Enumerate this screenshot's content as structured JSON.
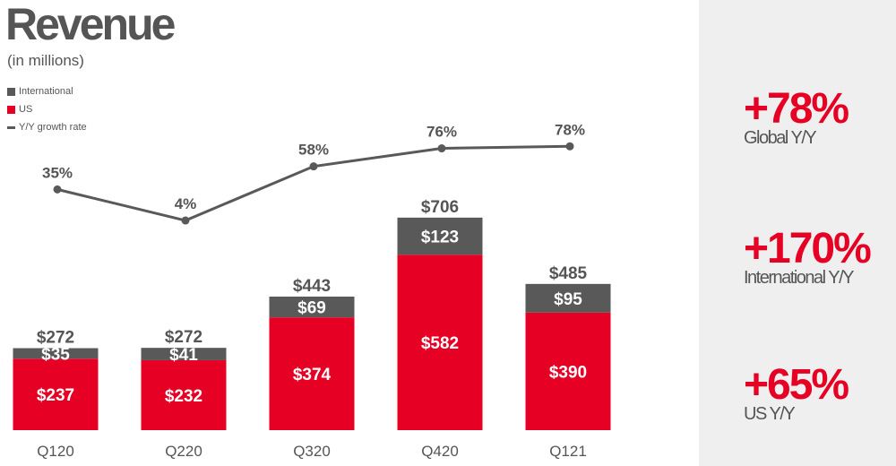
{
  "title": "Revenue",
  "subtitle": "(in millions)",
  "colors": {
    "international": "#595959",
    "us": "#e60023",
    "growth": "#595959",
    "text": "#555555"
  },
  "legend": [
    {
      "label": "International",
      "kind": "square",
      "color": "#595959"
    },
    {
      "label": "US",
      "kind": "square",
      "color": "#e60023"
    },
    {
      "label": "Y/Y growth rate",
      "kind": "dash",
      "color": "#595959"
    }
  ],
  "chart_data": {
    "type": "bar",
    "stacked": true,
    "categories": [
      "Q120",
      "Q220",
      "Q320",
      "Q420",
      "Q121"
    ],
    "series": [
      {
        "name": "US",
        "values": [
          237,
          232,
          374,
          582,
          390
        ],
        "labels": [
          "$237",
          "$232",
          "$374",
          "$582",
          "$390"
        ]
      },
      {
        "name": "International",
        "values": [
          35,
          41,
          69,
          123,
          95
        ],
        "labels": [
          "$35",
          "$41",
          "$69",
          "$123",
          "$95"
        ]
      }
    ],
    "totals": [
      272,
      272,
      443,
      706,
      485
    ],
    "total_labels": [
      "$272",
      "$272",
      "$443",
      "$706",
      "$485"
    ],
    "growth": {
      "name": "Y/Y growth rate",
      "values": [
        35,
        4,
        58,
        76,
        78
      ],
      "labels": [
        "35%",
        "4%",
        "58%",
        "76%",
        "78%"
      ]
    }
  },
  "stats": [
    {
      "value": "+78%",
      "label": "Global Y/Y"
    },
    {
      "value": "+170%",
      "label": "International Y/Y"
    },
    {
      "value": "+65%",
      "label": "US Y/Y"
    }
  ]
}
